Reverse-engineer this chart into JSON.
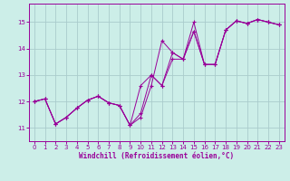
{
  "background_color": "#cceee8",
  "grid_color": "#aacccc",
  "line_color": "#990099",
  "xlabel": "Windchill (Refroidissement éolien,°C)",
  "xlim": [
    -0.5,
    23.5
  ],
  "ylim": [
    10.5,
    15.7
  ],
  "yticks": [
    11,
    12,
    13,
    14,
    15
  ],
  "xticks": [
    0,
    1,
    2,
    3,
    4,
    5,
    6,
    7,
    8,
    9,
    10,
    11,
    12,
    13,
    14,
    15,
    16,
    17,
    18,
    19,
    20,
    21,
    22,
    23
  ],
  "s1": [
    12.0,
    12.1,
    11.15,
    11.4,
    11.75,
    12.05,
    12.2,
    11.95,
    11.85,
    11.1,
    11.4,
    12.6,
    14.3,
    13.85,
    13.6,
    15.0,
    13.4,
    13.4,
    14.7,
    15.05,
    14.95,
    15.1,
    15.0,
    14.9
  ],
  "s2": [
    12.0,
    12.1,
    11.15,
    11.4,
    11.75,
    12.05,
    12.2,
    11.95,
    11.85,
    11.1,
    12.6,
    13.0,
    12.6,
    13.6,
    13.6,
    14.65,
    13.4,
    13.4,
    14.7,
    15.05,
    14.95,
    15.1,
    15.0,
    14.9
  ],
  "s3": [
    12.0,
    12.1,
    11.15,
    11.4,
    11.75,
    12.05,
    12.2,
    11.95,
    11.85,
    11.1,
    11.55,
    13.0,
    12.6,
    13.85,
    13.6,
    14.65,
    13.4,
    13.4,
    14.7,
    15.05,
    14.95,
    15.1,
    15.0,
    14.9
  ]
}
